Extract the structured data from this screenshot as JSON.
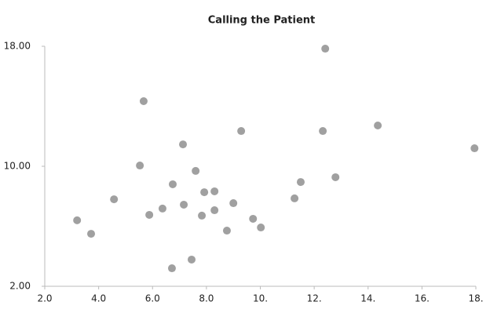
{
  "chart_data": {
    "type": "scatter",
    "title": "Calling the Patient",
    "color": "#a0a0a0",
    "x": [
      3.2,
      3.72,
      4.57,
      5.53,
      5.67,
      5.88,
      6.37,
      6.72,
      6.75,
      7.13,
      7.16,
      7.45,
      7.6,
      7.83,
      7.92,
      8.3,
      8.3,
      8.76,
      9.0,
      9.29,
      9.73,
      10.02,
      11.27,
      11.5,
      12.32,
      12.41,
      12.79,
      14.36,
      17.95
    ],
    "values": [
      6.4,
      5.5,
      7.8,
      10.05,
      14.34,
      6.76,
      7.18,
      3.2,
      8.8,
      11.46,
      7.44,
      3.78,
      9.69,
      6.71,
      8.27,
      8.33,
      7.07,
      5.71,
      7.54,
      12.35,
      6.5,
      5.92,
      7.86,
      8.95,
      12.35,
      17.84,
      9.27,
      12.72,
      11.2
    ],
    "xlim": [
      2,
      18
    ],
    "ylim": [
      2,
      18
    ],
    "xticks": [
      {
        "value": 2,
        "label": "2.0"
      },
      {
        "value": 4,
        "label": "4.0"
      },
      {
        "value": 6,
        "label": "6.0"
      },
      {
        "value": 8,
        "label": "8.0"
      },
      {
        "value": 10,
        "label": "10."
      },
      {
        "value": 12,
        "label": "12."
      },
      {
        "value": 14,
        "label": "14."
      },
      {
        "value": 16,
        "label": "16."
      },
      {
        "value": 18,
        "label": "18."
      }
    ],
    "yticks": [
      {
        "value": 2,
        "label": "2.00"
      },
      {
        "value": 10,
        "label": "10.00"
      },
      {
        "value": 18,
        "label": "18.00"
      }
    ]
  }
}
